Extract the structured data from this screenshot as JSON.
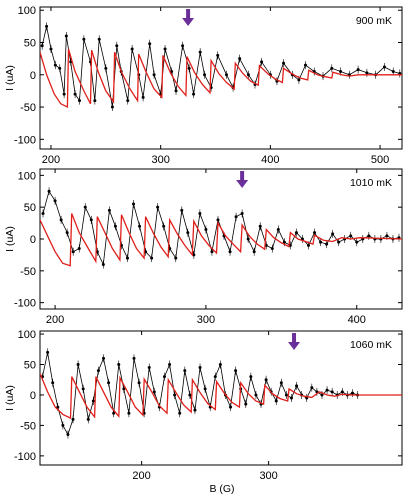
{
  "figure": {
    "ylabel": "I (uA)",
    "xlabel": "B (G)"
  },
  "chart_data": [
    {
      "type": "line",
      "annotation": "900 mK",
      "xlim": [
        190,
        520
      ],
      "ylim": [
        -115,
        105
      ],
      "xticks": [
        200,
        300,
        400,
        500
      ],
      "yticks": [
        -100,
        -50,
        0,
        50,
        100
      ],
      "arrow_x": 325,
      "series": [
        {
          "kind": "measured",
          "color": "#000000",
          "x": [
            192,
            196,
            200,
            204,
            208,
            212,
            214,
            218,
            222,
            226,
            230,
            236,
            240,
            244,
            250,
            256,
            260,
            264,
            270,
            274,
            280,
            284,
            290,
            294,
            300,
            304,
            310,
            314,
            320,
            326,
            330,
            336,
            340,
            346,
            352,
            360,
            366,
            372,
            380,
            386,
            392,
            400,
            406,
            412,
            420,
            426,
            432,
            440,
            448,
            456,
            464,
            472,
            480,
            488,
            496,
            504,
            512,
            518
          ],
          "y": [
            45,
            75,
            40,
            15,
            10,
            -30,
            60,
            20,
            -30,
            -40,
            55,
            20,
            -40,
            55,
            10,
            -50,
            45,
            5,
            -40,
            40,
            0,
            -35,
            48,
            0,
            -30,
            40,
            5,
            -25,
            45,
            10,
            -30,
            35,
            0,
            -20,
            30,
            0,
            -20,
            25,
            0,
            -15,
            20,
            0,
            -10,
            18,
            0,
            -8,
            15,
            5,
            -2,
            10,
            5,
            0,
            8,
            3,
            0,
            12,
            5,
            2
          ]
        },
        {
          "kind": "fit",
          "color": "#e0201b",
          "x": [
            190,
            196,
            203,
            209,
            215,
            216,
            222,
            230,
            236,
            237,
            243,
            250,
            257,
            258,
            264,
            272,
            279,
            280,
            287,
            294,
            301,
            302,
            309,
            316,
            323,
            324,
            331,
            338,
            345,
            346,
            353,
            360,
            367,
            368,
            375,
            382,
            389,
            390,
            398,
            405,
            411,
            412,
            420,
            427,
            434,
            435,
            443,
            450,
            456,
            457,
            465,
            472,
            480,
            495,
            520
          ],
          "y": [
            35,
            0,
            -30,
            -45,
            -50,
            40,
            5,
            -25,
            -45,
            38,
            5,
            -25,
            -42,
            35,
            5,
            -22,
            -40,
            32,
            3,
            -22,
            -35,
            30,
            3,
            -18,
            -32,
            28,
            3,
            -15,
            -28,
            22,
            2,
            -12,
            -22,
            18,
            2,
            -10,
            -16,
            14,
            1,
            -7,
            -12,
            10,
            1,
            -5,
            -8,
            7,
            0,
            -3,
            -5,
            4,
            0,
            -2,
            0,
            0,
            0
          ]
        }
      ]
    },
    {
      "type": "line",
      "annotation": "1010 mK",
      "xlim": [
        190,
        430
      ],
      "ylim": [
        -110,
        110
      ],
      "xticks": [
        200,
        300,
        400
      ],
      "yticks": [
        -100,
        -50,
        0,
        50,
        100
      ],
      "arrow_x": 324,
      "series": [
        {
          "kind": "measured",
          "color": "#000000",
          "x": [
            192,
            196,
            200,
            204,
            208,
            212,
            216,
            220,
            224,
            228,
            232,
            236,
            240,
            244,
            248,
            252,
            256,
            260,
            264,
            268,
            272,
            276,
            280,
            284,
            288,
            292,
            296,
            300,
            304,
            308,
            312,
            316,
            320,
            324,
            328,
            332,
            336,
            340,
            344,
            348,
            352,
            356,
            360,
            364,
            368,
            372,
            376,
            380,
            384,
            388,
            392,
            396,
            400,
            404,
            408,
            412,
            416,
            420,
            424,
            428
          ],
          "y": [
            40,
            75,
            60,
            30,
            10,
            -20,
            -15,
            50,
            30,
            -20,
            -40,
            45,
            20,
            -10,
            -30,
            55,
            20,
            -20,
            -30,
            50,
            20,
            -15,
            -30,
            45,
            10,
            -25,
            40,
            15,
            -20,
            30,
            5,
            -20,
            35,
            40,
            0,
            -20,
            20,
            -10,
            -15,
            15,
            -5,
            -10,
            10,
            0,
            -10,
            10,
            -5,
            -8,
            8,
            -5,
            0,
            5,
            -5,
            0,
            5,
            0,
            0,
            5,
            0,
            2
          ]
        },
        {
          "kind": "fit",
          "color": "#e0201b",
          "x": [
            190,
            195,
            200,
            205,
            210,
            211,
            216,
            222,
            227,
            228,
            233,
            238,
            243,
            244,
            249,
            254,
            259,
            260,
            265,
            270,
            275,
            276,
            281,
            286,
            291,
            292,
            297,
            302,
            307,
            308,
            313,
            318,
            323,
            324,
            329,
            334,
            339,
            340,
            345,
            350,
            355,
            356,
            361,
            366,
            371,
            372,
            378,
            384,
            390,
            396,
            402,
            430
          ],
          "y": [
            30,
            5,
            -20,
            -38,
            -42,
            40,
            10,
            -15,
            -35,
            35,
            10,
            -15,
            -33,
            38,
            10,
            -15,
            -30,
            35,
            10,
            -12,
            -28,
            30,
            8,
            -10,
            -25,
            28,
            5,
            -10,
            -22,
            25,
            5,
            -8,
            -20,
            22,
            4,
            -8,
            -16,
            15,
            2,
            -6,
            -12,
            10,
            0,
            -4,
            -8,
            6,
            -2,
            -4,
            2,
            0,
            2,
            0
          ]
        }
      ]
    },
    {
      "type": "line",
      "annotation": "1060 mK",
      "xlim": [
        120,
        405
      ],
      "ylim": [
        -115,
        105
      ],
      "xticks": [
        200,
        300
      ],
      "yticks": [
        -100,
        -50,
        0,
        50,
        100
      ],
      "arrow_x": 320,
      "series": [
        {
          "kind": "measured",
          "color": "#000000",
          "x": [
            122,
            126,
            130,
            134,
            138,
            142,
            146,
            150,
            154,
            158,
            162,
            166,
            170,
            174,
            178,
            182,
            186,
            190,
            194,
            198,
            202,
            206,
            210,
            214,
            218,
            222,
            226,
            230,
            234,
            238,
            242,
            246,
            250,
            254,
            258,
            262,
            266,
            270,
            274,
            278,
            282,
            286,
            290,
            294,
            298,
            302,
            306,
            310,
            314,
            318,
            322,
            326,
            330,
            334,
            338,
            342,
            346,
            350,
            354,
            358,
            362,
            366,
            370
          ],
          "y": [
            30,
            70,
            20,
            -20,
            -50,
            -65,
            -40,
            50,
            10,
            -40,
            -10,
            40,
            60,
            20,
            -30,
            50,
            10,
            -30,
            60,
            20,
            -30,
            45,
            5,
            -20,
            30,
            50,
            0,
            -30,
            40,
            0,
            -25,
            45,
            10,
            -20,
            30,
            50,
            0,
            -20,
            40,
            10,
            -15,
            30,
            0,
            -15,
            25,
            5,
            -10,
            20,
            0,
            -5,
            15,
            0,
            -5,
            12,
            5,
            0,
            8,
            5,
            0,
            5,
            0,
            3,
            0
          ]
        },
        {
          "kind": "fit",
          "color": "#e0201b",
          "x": [
            120,
            126,
            132,
            138,
            144,
            145,
            151,
            157,
            163,
            164,
            170,
            176,
            182,
            183,
            189,
            195,
            201,
            202,
            208,
            214,
            220,
            221,
            227,
            233,
            239,
            240,
            246,
            252,
            258,
            259,
            265,
            271,
            277,
            278,
            284,
            290,
            296,
            297,
            303,
            309,
            315,
            316,
            322,
            328,
            334,
            340,
            346,
            352,
            358,
            364,
            405
          ],
          "y": [
            35,
            5,
            -20,
            -32,
            -38,
            30,
            5,
            -20,
            -36,
            30,
            5,
            -20,
            -35,
            28,
            5,
            -20,
            -33,
            26,
            5,
            -18,
            -30,
            25,
            4,
            -16,
            -28,
            25,
            4,
            -14,
            -24,
            22,
            3,
            -12,
            -20,
            20,
            2,
            -10,
            -15,
            16,
            2,
            -6,
            -10,
            10,
            2,
            -2,
            -4,
            5,
            0,
            -2,
            1,
            0,
            0
          ]
        }
      ]
    }
  ]
}
